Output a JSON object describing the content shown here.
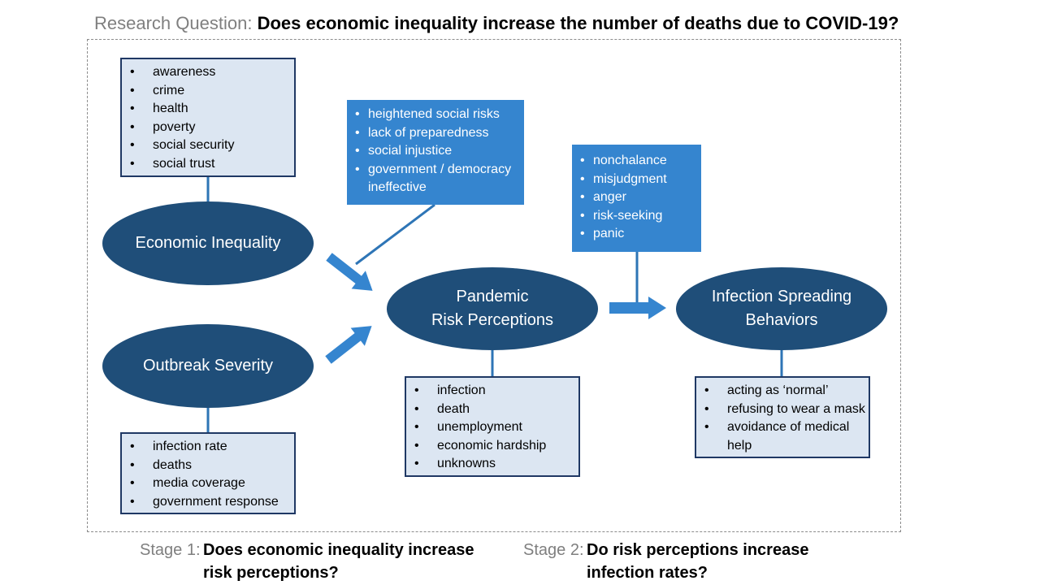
{
  "research_question": {
    "label": "Research Question:",
    "question": "Does economic inequality increase the number of deaths due to COVID-19?"
  },
  "nodes": {
    "economic_inequality": "Economic Inequality",
    "outbreak_severity": "Outbreak Severity",
    "pandemic_risk": "Pandemic\nRisk Perceptions",
    "infection_behaviors": "Infection Spreading\nBehaviors"
  },
  "lists": {
    "inequality_factors": [
      "awareness",
      "crime",
      "health",
      "poverty",
      "social security",
      "social trust"
    ],
    "severity_factors": [
      "infection rate",
      "deaths",
      "media coverage",
      "government response"
    ],
    "moderators_1": [
      "heightened social risks",
      "lack of preparedness",
      "social injustice",
      "government / democracy ineffective"
    ],
    "moderators_2": [
      "nonchalance",
      "misjudgment",
      "anger",
      "risk-seeking",
      "panic"
    ],
    "risk_types": [
      "infection",
      "death",
      "unemployment",
      "economic hardship",
      "unknowns"
    ],
    "behaviors": [
      "acting as ‘normal’",
      "refusing to wear a mask",
      "avoidance of medical help"
    ]
  },
  "stages": {
    "stage1": {
      "label": "Stage 1:",
      "question": "Does economic inequality increase\nrisk perceptions?"
    },
    "stage2": {
      "label": "Stage 2:",
      "question": "Do risk perceptions increase\ninfection rates?"
    }
  },
  "colors": {
    "ellipse": "#1f4e79",
    "dark_box": "#3585cf",
    "light_box": "#dce6f2",
    "box_border": "#1f3864",
    "arrow": "#3585cf",
    "label_gray": "#7f7f7f"
  }
}
